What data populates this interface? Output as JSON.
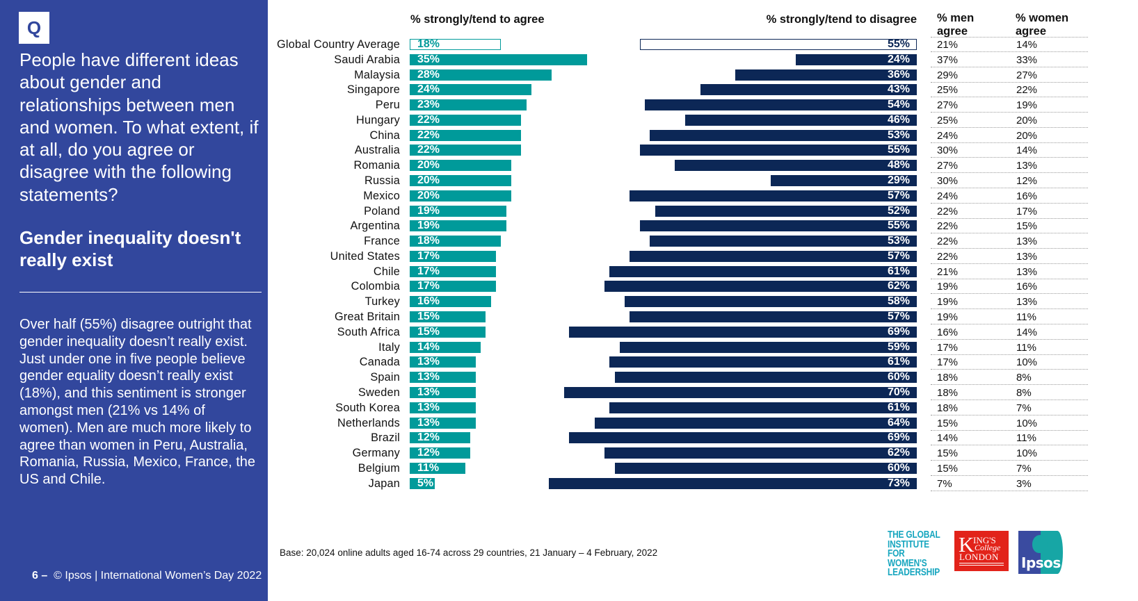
{
  "left_panel": {
    "q_badge": "Q",
    "question": "People have different ideas about gender and relationships between men and women. To what extent, if at all, do you agree or disagree  with the following statements?",
    "statement": "Gender inequality doesn't really exist",
    "summary": "Over half (55%) disagree outright that gender inequality doesn’t really exist. Just under one in five people believe gender equality doesn’t really exist (18%), and this sentiment is stronger amongst men (21% vs 14% of women). Men are much more likely to agree than women in Peru, Australia, Romania, Russia, Mexico, France, the US and Chile.",
    "footer_page": "6 –",
    "footer_text": "© Ipsos | International Women’s Day 2022"
  },
  "base_note": "Base: 20,024 online adults aged 16-74 across 29 countries, 21 January – 4 February, 2022",
  "logos": {
    "giwl": [
      "THE GLOBAL",
      "INSTITUTE",
      "FOR WOMEN'S",
      "LEADERSHIP"
    ],
    "kings": {
      "k": "K",
      "ings": "ING'S",
      "college": "College",
      "london": "LONDON"
    },
    "ipsos": "Ipsos"
  },
  "colors": {
    "panel": "#32479d",
    "agree": "#009a9a",
    "disagree": "#0c2756"
  },
  "chart_data": {
    "type": "bar",
    "title": "Gender inequality doesn't really exist",
    "orientation": "horizontal",
    "headers": {
      "agree": "% strongly/tend to agree",
      "disagree": "% strongly/tend to disagree",
      "men": "% men agree",
      "women": "% women agree"
    },
    "categories": [
      "Global Country Average",
      "Saudi Arabia",
      "Malaysia",
      "Singapore",
      "Peru",
      "Hungary",
      "China",
      "Australia",
      "Romania",
      "Russia",
      "Mexico",
      "Poland",
      "Argentina",
      "France",
      "United States",
      "Chile",
      "Colombia",
      "Turkey",
      "Great Britain",
      "South Africa",
      "Italy",
      "Canada",
      "Spain",
      "Sweden",
      "South Korea",
      "Netherlands",
      "Brazil",
      "Germany",
      "Belgium",
      "Japan"
    ],
    "series": [
      {
        "name": "% strongly/tend to agree",
        "values": [
          18,
          35,
          28,
          24,
          23,
          22,
          22,
          22,
          20,
          20,
          20,
          19,
          19,
          18,
          17,
          17,
          17,
          16,
          15,
          15,
          14,
          13,
          13,
          13,
          13,
          13,
          12,
          12,
          11,
          5
        ]
      },
      {
        "name": "% strongly/tend to disagree",
        "values": [
          55,
          24,
          36,
          43,
          54,
          46,
          53,
          55,
          48,
          29,
          57,
          52,
          55,
          53,
          57,
          61,
          62,
          58,
          57,
          69,
          59,
          61,
          60,
          70,
          61,
          64,
          69,
          62,
          60,
          73
        ]
      },
      {
        "name": "% men agree",
        "values": [
          21,
          37,
          29,
          25,
          27,
          25,
          24,
          30,
          27,
          30,
          24,
          22,
          22,
          22,
          22,
          21,
          19,
          19,
          19,
          16,
          17,
          17,
          18,
          18,
          18,
          15,
          14,
          15,
          15,
          7
        ]
      },
      {
        "name": "% women agree",
        "values": [
          14,
          33,
          27,
          22,
          19,
          20,
          20,
          14,
          13,
          12,
          16,
          17,
          15,
          13,
          13,
          13,
          16,
          13,
          11,
          14,
          11,
          10,
          8,
          8,
          7,
          10,
          11,
          10,
          7,
          3
        ]
      }
    ],
    "highlight_first_row": true,
    "xlabel": "",
    "ylabel": "",
    "grid": false,
    "legend": "none"
  }
}
